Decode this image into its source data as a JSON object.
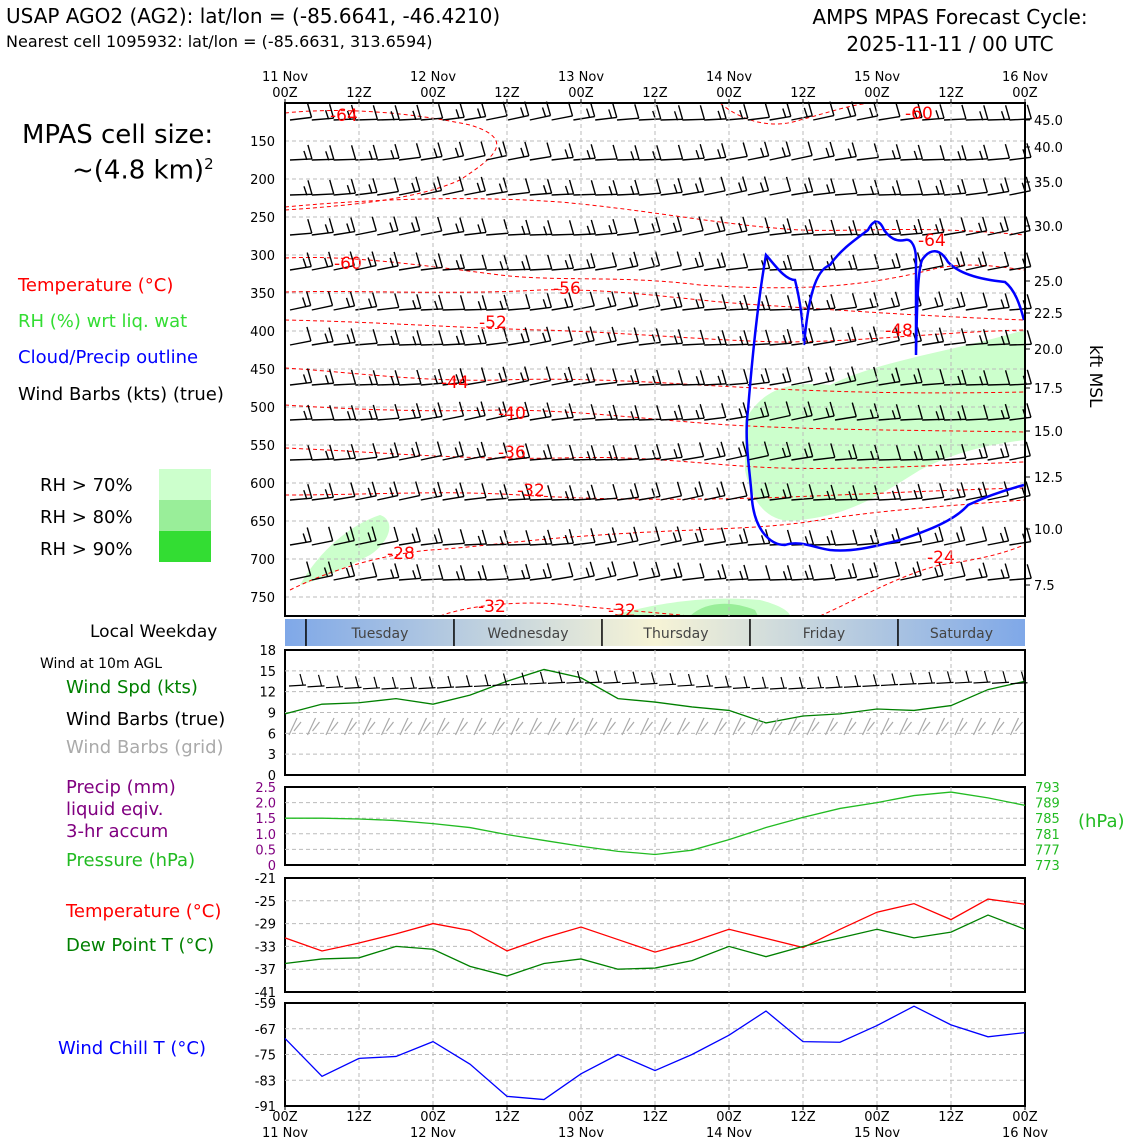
{
  "header": {
    "title_left": "USAP AGO2 (AG2): lat/lon = (-85.6641, -46.4210)",
    "subtitle_left": "Nearest cell 1095932: lat/lon = (-85.6631, 313.6594)",
    "title_right_line1": "AMPS MPAS Forecast Cycle:",
    "title_right_line2": "2025-11-11 / 00 UTC"
  },
  "cell_size": {
    "label": "MPAS cell size:",
    "value": "~(4.8 km)",
    "sup": "2"
  },
  "legend": {
    "temperature": "Temperature (°C)",
    "rh": "RH (%) wrt liq. wat",
    "cloud": "Cloud/Precip outline",
    "wind": "Wind Barbs (kts) (true)",
    "rh70": "RH > 70%",
    "rh80": "RH > 80%",
    "rh90": "RH > 90%"
  },
  "colors": {
    "temp": "#ff0000",
    "rh_text": "#33dd33",
    "cloud": "#0000ff",
    "rh70": "#ccffcc",
    "rh80": "#99ee99",
    "rh90": "#33dd33",
    "wind_spd": "#008000",
    "pressure": "#22bb22",
    "precip": "#800080",
    "dewpoint": "#008000",
    "windchill": "#0000ff",
    "grid_barb": "#aaaaaa"
  },
  "weekday": {
    "label": "Local Weekday",
    "days": [
      "Tuesday",
      "Wednesday",
      "Thursday",
      "Friday",
      "Saturday"
    ]
  },
  "left_labels": {
    "wind_at": "Wind at 10m AGL",
    "wind_spd": "Wind Spd (kts)",
    "wind_barbs_true": "Wind Barbs (true)",
    "wind_barbs_grid": "Wind Barbs (grid)",
    "precip1": "Precip (mm)",
    "precip2": "liquid eqiv.",
    "precip3": "3-hr accum",
    "pressure": "Pressure (hPa)",
    "temp": "Temperature (°C)",
    "dewpoint": "Dew Point T (°C)",
    "windchill": "Wind Chill T (°C)"
  },
  "time_axis": {
    "top_dates": [
      "11 Nov",
      "12 Nov",
      "13 Nov",
      "14 Nov",
      "15 Nov",
      "16 Nov"
    ],
    "hour_ticks": [
      "00Z",
      "12Z",
      "00Z",
      "12Z",
      "00Z",
      "12Z",
      "00Z",
      "12Z",
      "00Z",
      "12Z",
      "00Z"
    ]
  },
  "chart_data": [
    {
      "type": "contour",
      "name": "upper-air time-height section",
      "x_range_hours": [
        0,
        120
      ],
      "y_left_label": "pressure (hPa)",
      "y_left_ticks": [
        "150",
        "200",
        "250",
        "300",
        "350",
        "400",
        "450",
        "500",
        "550",
        "600",
        "650",
        "700",
        "750"
      ],
      "y_right_label": "kft MSL",
      "y_right_ticks": [
        "45.0",
        "40.0",
        "35.0",
        "30.0",
        "25.0",
        "22.5",
        "20.0",
        "17.5",
        "15.0",
        "12.5",
        "10.0",
        "7.5"
      ],
      "temperature_labels": [
        "-64",
        "-60",
        "-60",
        "-56",
        "-52",
        "-48",
        "-44",
        "-40",
        "-36",
        "-32",
        "-28",
        "-32",
        "-32",
        "-24",
        "-64"
      ]
    },
    {
      "type": "line",
      "name": "wind speed 10m",
      "y_ticks": [
        "18",
        "15",
        "12",
        "9",
        "6",
        "3",
        "0"
      ],
      "ylim": [
        0,
        18
      ],
      "x": [
        0,
        6,
        12,
        18,
        24,
        30,
        36,
        42,
        48,
        54,
        60,
        66,
        72,
        78,
        84,
        90,
        96,
        102,
        108,
        114,
        120
      ],
      "values": [
        8.8,
        10.2,
        10.4,
        11.0,
        10.2,
        11.5,
        13.5,
        15.2,
        14.0,
        11.0,
        10.5,
        9.8,
        9.3,
        7.5,
        8.5,
        8.8,
        9.5,
        9.3,
        10.0,
        12.3,
        13.5
      ]
    },
    {
      "type": "line",
      "name": "pressure",
      "y_left_ticks": [
        "2.5",
        "2.0",
        "1.5",
        "1.0",
        "0.5",
        "0"
      ],
      "y_right_ticks": [
        "793",
        "789",
        "785",
        "781",
        "777",
        "773"
      ],
      "right_unit": "(hPa)",
      "ylim": [
        773,
        793
      ],
      "x": [
        0,
        6,
        12,
        18,
        24,
        30,
        36,
        42,
        48,
        54,
        60,
        66,
        72,
        78,
        84,
        90,
        96,
        102,
        108,
        114,
        120
      ],
      "values": [
        785.0,
        785.0,
        784.8,
        784.4,
        783.6,
        782.6,
        780.8,
        779.3,
        777.8,
        776.5,
        775.7,
        776.8,
        779.5,
        782.6,
        785.2,
        787.5,
        789.0,
        790.8,
        791.7,
        790.2,
        788.3
      ]
    },
    {
      "type": "line",
      "name": "temperature and dew point",
      "y_ticks": [
        "-21",
        "-25",
        "-29",
        "-33",
        "-37",
        "-41"
      ],
      "ylim": [
        -41,
        -21
      ],
      "x": [
        0,
        6,
        12,
        18,
        24,
        30,
        36,
        42,
        48,
        54,
        60,
        66,
        72,
        78,
        84,
        90,
        96,
        102,
        108,
        114,
        120
      ],
      "series": [
        {
          "name": "Temperature",
          "values": [
            -31.5,
            -33.8,
            -32.4,
            -30.8,
            -29.0,
            -30.2,
            -33.8,
            -31.5,
            -29.6,
            -31.8,
            -34.0,
            -32.2,
            -30.0,
            -31.6,
            -33.2,
            -30.0,
            -27.0,
            -25.5,
            -28.3,
            -24.7,
            -25.6
          ]
        },
        {
          "name": "Dew Point",
          "values": [
            -36.0,
            -35.2,
            -35.0,
            -33.0,
            -33.5,
            -36.5,
            -38.2,
            -36.0,
            -35.2,
            -37.0,
            -36.8,
            -35.5,
            -33.0,
            -34.8,
            -33.0,
            -31.5,
            -30.0,
            -31.5,
            -30.5,
            -27.5,
            -30.0
          ]
        }
      ]
    },
    {
      "type": "line",
      "name": "wind chill",
      "y_ticks": [
        "-59",
        "-67",
        "-75",
        "-83",
        "-91"
      ],
      "ylim": [
        -91,
        -59
      ],
      "x": [
        0,
        6,
        12,
        18,
        24,
        30,
        36,
        42,
        48,
        54,
        60,
        66,
        72,
        78,
        84,
        90,
        96,
        102,
        108,
        114,
        120
      ],
      "values": [
        -70.0,
        -81.8,
        -76.2,
        -75.6,
        -71.0,
        -78.0,
        -88.0,
        -89.0,
        -81.0,
        -75.0,
        -80.0,
        -75.0,
        -69.0,
        -61.5,
        -71.0,
        -71.2,
        -66.0,
        -60.0,
        -65.8,
        -69.5,
        -68.2
      ]
    }
  ]
}
